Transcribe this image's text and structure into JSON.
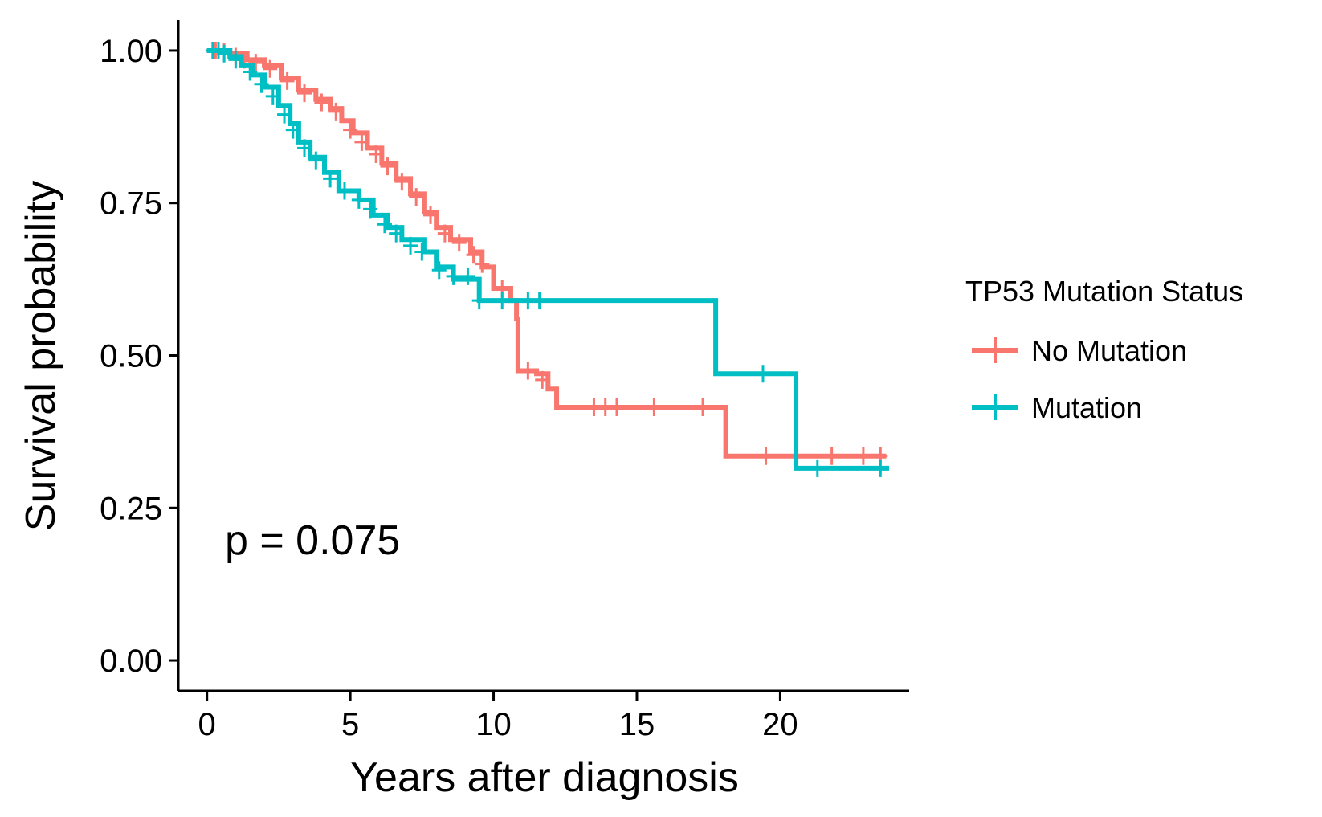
{
  "chart_data": {
    "type": "line",
    "subtype": "kaplan-meier",
    "xlabel": "Years after diagnosis",
    "ylabel": "Survival probability",
    "xlim": [
      -1,
      24.5
    ],
    "ylim": [
      -0.05,
      1.05
    ],
    "xticks": [
      0,
      5,
      10,
      15,
      20
    ],
    "yticks": [
      0.0,
      0.25,
      0.5,
      0.75,
      1.0
    ],
    "xtick_labels": [
      "0",
      "5",
      "10",
      "15",
      "20"
    ],
    "ytick_labels": [
      "0.00",
      "0.25",
      "0.50",
      "0.75",
      "1.00"
    ],
    "annotation": "p = 0.075",
    "grid": false,
    "legend": {
      "title": "TP53 Mutation Status",
      "placement": "right"
    },
    "series": [
      {
        "name": "No Mutation",
        "color": "#F8766D",
        "points": [
          [
            0,
            1.0
          ],
          [
            0.8,
            0.995
          ],
          [
            1.4,
            0.985
          ],
          [
            2.0,
            0.975
          ],
          [
            2.6,
            0.955
          ],
          [
            3.2,
            0.935
          ],
          [
            3.8,
            0.92
          ],
          [
            4.3,
            0.905
          ],
          [
            4.7,
            0.885
          ],
          [
            5.1,
            0.865
          ],
          [
            5.6,
            0.84
          ],
          [
            6.1,
            0.815
          ],
          [
            6.6,
            0.79
          ],
          [
            7.1,
            0.765
          ],
          [
            7.6,
            0.735
          ],
          [
            8.0,
            0.71
          ],
          [
            8.5,
            0.69
          ],
          [
            9.2,
            0.67
          ],
          [
            9.6,
            0.645
          ],
          [
            10.0,
            0.61
          ],
          [
            10.6,
            0.59
          ],
          [
            10.8,
            0.56
          ],
          [
            10.85,
            0.475
          ],
          [
            11.5,
            0.47
          ],
          [
            11.9,
            0.445
          ],
          [
            12.2,
            0.415
          ],
          [
            18.0,
            0.415
          ],
          [
            18.1,
            0.335
          ],
          [
            23.7,
            0.335
          ]
        ],
        "censors": [
          [
            0.3,
            1.0
          ],
          [
            0.6,
            0.998
          ],
          [
            1.0,
            0.99
          ],
          [
            1.3,
            0.985
          ],
          [
            1.7,
            0.98
          ],
          [
            2.2,
            0.97
          ],
          [
            2.8,
            0.95
          ],
          [
            3.4,
            0.93
          ],
          [
            4.0,
            0.915
          ],
          [
            4.5,
            0.9
          ],
          [
            5.0,
            0.87
          ],
          [
            5.4,
            0.85
          ],
          [
            5.9,
            0.83
          ],
          [
            6.3,
            0.81
          ],
          [
            6.8,
            0.785
          ],
          [
            7.3,
            0.76
          ],
          [
            7.8,
            0.73
          ],
          [
            8.3,
            0.7
          ],
          [
            8.8,
            0.685
          ],
          [
            9.3,
            0.665
          ],
          [
            9.6,
            0.65
          ],
          [
            10.3,
            0.61
          ],
          [
            11.2,
            0.475
          ],
          [
            11.7,
            0.46
          ],
          [
            13.5,
            0.415
          ],
          [
            13.9,
            0.415
          ],
          [
            14.3,
            0.415
          ],
          [
            15.6,
            0.415
          ],
          [
            17.3,
            0.415
          ],
          [
            19.5,
            0.335
          ],
          [
            21.8,
            0.335
          ],
          [
            22.9,
            0.335
          ],
          [
            23.5,
            0.335
          ]
        ]
      },
      {
        "name": "Mutation",
        "color": "#00BFC4",
        "points": [
          [
            0,
            1.0
          ],
          [
            0.8,
            0.99
          ],
          [
            1.2,
            0.975
          ],
          [
            1.6,
            0.96
          ],
          [
            2.0,
            0.94
          ],
          [
            2.5,
            0.91
          ],
          [
            2.9,
            0.88
          ],
          [
            3.2,
            0.85
          ],
          [
            3.6,
            0.825
          ],
          [
            4.1,
            0.8
          ],
          [
            4.6,
            0.77
          ],
          [
            5.3,
            0.755
          ],
          [
            5.8,
            0.73
          ],
          [
            6.3,
            0.71
          ],
          [
            6.8,
            0.69
          ],
          [
            7.6,
            0.67
          ],
          [
            8.0,
            0.645
          ],
          [
            8.6,
            0.625
          ],
          [
            9.5,
            0.59
          ],
          [
            17.7,
            0.59
          ],
          [
            17.75,
            0.47
          ],
          [
            20.5,
            0.47
          ],
          [
            20.55,
            0.315
          ],
          [
            23.8,
            0.315
          ]
        ],
        "censors": [
          [
            0.2,
            1.0
          ],
          [
            0.4,
            1.0
          ],
          [
            0.6,
            0.995
          ],
          [
            1.0,
            0.985
          ],
          [
            1.5,
            0.965
          ],
          [
            1.9,
            0.945
          ],
          [
            2.3,
            0.925
          ],
          [
            2.7,
            0.895
          ],
          [
            3.0,
            0.87
          ],
          [
            3.4,
            0.84
          ],
          [
            3.8,
            0.82
          ],
          [
            4.3,
            0.79
          ],
          [
            4.8,
            0.77
          ],
          [
            5.3,
            0.755
          ],
          [
            5.7,
            0.74
          ],
          [
            6.2,
            0.715
          ],
          [
            6.6,
            0.7
          ],
          [
            7.1,
            0.68
          ],
          [
            7.5,
            0.67
          ],
          [
            8.1,
            0.64
          ],
          [
            8.6,
            0.63
          ],
          [
            9.1,
            0.63
          ],
          [
            9.5,
            0.59
          ],
          [
            10.3,
            0.59
          ],
          [
            11.2,
            0.59
          ],
          [
            11.6,
            0.59
          ],
          [
            19.4,
            0.47
          ],
          [
            21.3,
            0.315
          ],
          [
            23.5,
            0.315
          ]
        ]
      }
    ]
  }
}
